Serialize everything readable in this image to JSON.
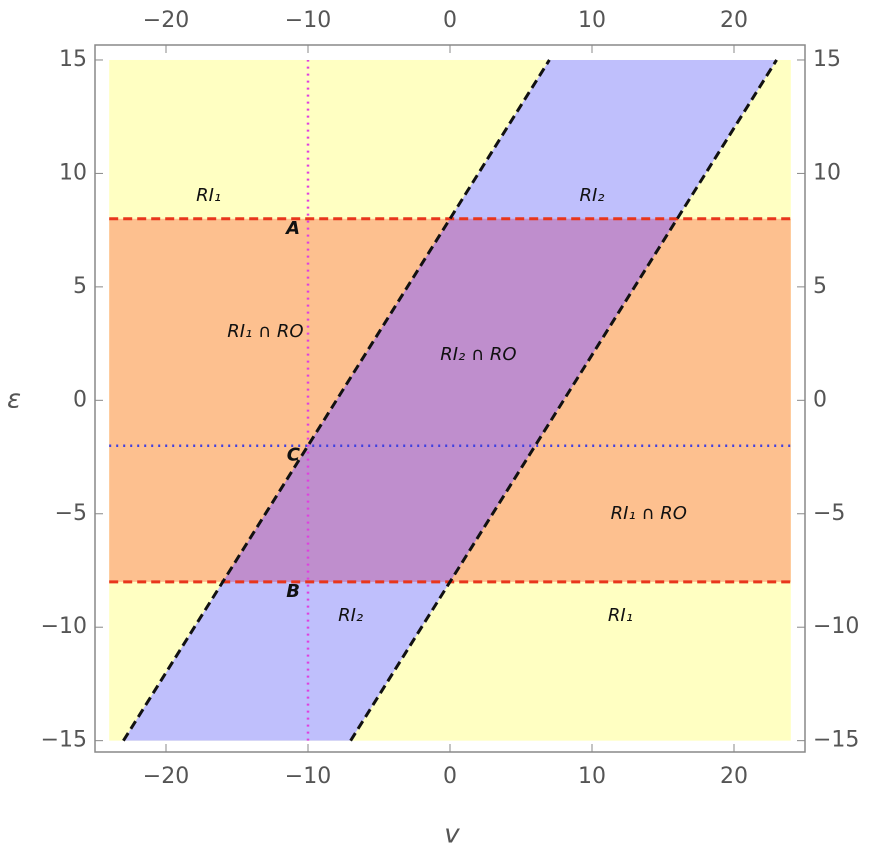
{
  "chart_data": {
    "type": "region",
    "xlabel": "v",
    "ylabel": "ε",
    "xlim": [
      -25,
      25
    ],
    "ylim": [
      -15.5,
      15.66
    ],
    "xticks": [
      {
        "value": -20,
        "label": "−20"
      },
      {
        "value": -10,
        "label": "−10"
      },
      0,
      10,
      20
    ],
    "yticks": [
      {
        "value": -15,
        "label": "−15"
      },
      {
        "value": -10,
        "label": "−10"
      },
      {
        "value": -5,
        "label": "−5"
      },
      0,
      5,
      10,
      15
    ],
    "regions": {
      "x_range": [
        -24,
        24
      ],
      "y_range": [
        -15,
        15
      ],
      "h_band": [
        -8,
        8
      ],
      "diag_slope": 1,
      "diag_offsets": [
        -8,
        8
      ],
      "colors": {
        "base": "#ffffc2",
        "h_band": "#fdc08f",
        "diag_band": "#bfbffc",
        "overlap": "#bf8ecd"
      }
    },
    "h_line_color": "#e8361c",
    "diag_line_color": "#111111",
    "dotted": {
      "x": -10,
      "x_color": "#e040e0",
      "y": -2,
      "y_color": "#4040e0"
    },
    "points": [
      {
        "label": "A",
        "x": -10,
        "y": 8
      },
      {
        "label": "B",
        "x": -10,
        "y": -8
      },
      {
        "label": "C",
        "x": -10,
        "y": -2
      }
    ],
    "annotations": [
      "RI₁",
      "RI₂",
      "RI₁ ∩ RO",
      "RI₂ ∩ RO",
      "RI₁ ∩ RO",
      "RI₂",
      "RI₁"
    ]
  }
}
